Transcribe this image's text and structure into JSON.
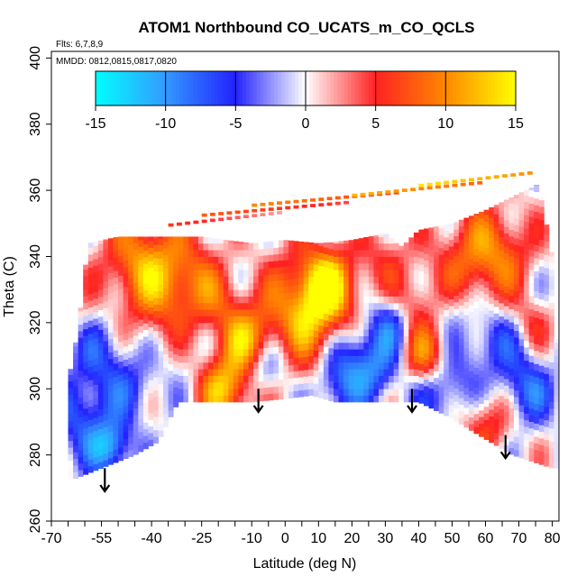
{
  "chart_data": {
    "type": "heatmap",
    "title": "ATOM1 Northbound CO_UCATS_m_CO_QCLS",
    "flights_label": "Flts: 6,7,8,9",
    "dates_label": "MMDD: 0812,0815,0817,0820",
    "xlabel": "Latitude (deg N)",
    "ylabel": "Theta (C)",
    "xlim": [
      -70,
      82
    ],
    "ylim": [
      260,
      402
    ],
    "x_ticks": [
      -70,
      -55,
      -40,
      -25,
      -10,
      0,
      10,
      20,
      30,
      40,
      50,
      60,
      70,
      80
    ],
    "x_tick_labels": [
      "-70",
      "-55",
      "-40",
      "-25",
      "-10",
      "0",
      "10",
      "20",
      "30",
      "40",
      "50",
      "60",
      "70",
      "80"
    ],
    "x_minor_ticks": [
      -65,
      -60,
      -50,
      -45,
      -35,
      -30,
      -20,
      -15,
      -5,
      5,
      15,
      25,
      35,
      45,
      55,
      65,
      75
    ],
    "y_ticks": [
      260,
      280,
      300,
      320,
      340,
      360,
      380,
      400
    ],
    "y_tick_labels": [
      "260",
      "280",
      "300",
      "320",
      "340",
      "360",
      "380",
      "400"
    ],
    "colorbar": {
      "min": -15,
      "max": 15,
      "ticks": [
        -15,
        -10,
        -5,
        0,
        5,
        10,
        15
      ],
      "tick_labels": [
        "-15",
        "-10",
        "-5",
        "0",
        "5",
        "10",
        "15"
      ],
      "colors": [
        "#00ffff",
        "#3399ff",
        "#2222ff",
        "#ffffff",
        "#ff2222",
        "#ff8800",
        "#ffff00"
      ]
    },
    "region_bottom_boundary": [
      [
        -65,
        272
      ],
      [
        -55,
        276
      ],
      [
        -45,
        280
      ],
      [
        -38,
        284
      ],
      [
        -32,
        296
      ],
      [
        -20,
        296
      ],
      [
        -10,
        296
      ],
      [
        0,
        297
      ],
      [
        8,
        298
      ],
      [
        15,
        296
      ],
      [
        25,
        296
      ],
      [
        32,
        296
      ],
      [
        40,
        296
      ],
      [
        50,
        291
      ],
      [
        58,
        286
      ],
      [
        68,
        280
      ],
      [
        74,
        278
      ],
      [
        80,
        276
      ]
    ],
    "region_top_boundary": [
      [
        -65,
        302
      ],
      [
        -62,
        318
      ],
      [
        -59,
        344
      ],
      [
        -50,
        346
      ],
      [
        -35,
        346
      ],
      [
        -25,
        346
      ],
      [
        -10,
        344
      ],
      [
        0,
        345
      ],
      [
        10,
        344
      ],
      [
        20,
        345
      ],
      [
        30,
        347
      ],
      [
        35,
        343
      ],
      [
        40,
        348
      ],
      [
        50,
        350
      ],
      [
        60,
        354
      ],
      [
        70,
        359
      ],
      [
        76,
        362
      ],
      [
        80,
        340
      ],
      [
        82,
        300
      ]
    ],
    "profile_arrows": [
      {
        "lat": -54,
        "theta_top": 276,
        "theta_bottom": 269
      },
      {
        "lat": -8,
        "theta_top": 300,
        "theta_bottom": 293
      },
      {
        "lat": 38,
        "theta_top": 300,
        "theta_bottom": 293
      },
      {
        "lat": 66,
        "theta_top": 286,
        "theta_bottom": 279
      }
    ],
    "field_features": [
      {
        "lat": -38,
        "theta": 330,
        "value": 7,
        "radius": 14
      },
      {
        "lat": -45,
        "theta": 340,
        "value": 6,
        "radius": 10
      },
      {
        "lat": -30,
        "theta": 335,
        "value": 5,
        "radius": 10
      },
      {
        "lat": -20,
        "theta": 326,
        "value": 4,
        "radius": 8
      },
      {
        "lat": -55,
        "theta": 310,
        "value": -6,
        "radius": 10
      },
      {
        "lat": -60,
        "theta": 290,
        "value": -7,
        "radius": 9
      },
      {
        "lat": -52,
        "theta": 282,
        "value": -10,
        "radius": 6
      },
      {
        "lat": -45,
        "theta": 300,
        "value": -4,
        "radius": 8
      },
      {
        "lat": -62,
        "theta": 322,
        "value": 2,
        "radius": 6
      },
      {
        "lat": -18,
        "theta": 300,
        "value": 12,
        "radius": 8
      },
      {
        "lat": -12,
        "theta": 315,
        "value": 9,
        "radius": 8
      },
      {
        "lat": -6,
        "theta": 305,
        "value": -6,
        "radius": 6
      },
      {
        "lat": 0,
        "theta": 312,
        "value": -3,
        "radius": 6
      },
      {
        "lat": 8,
        "theta": 322,
        "value": 13,
        "radius": 14
      },
      {
        "lat": 12,
        "theta": 332,
        "value": 9,
        "radius": 8
      },
      {
        "lat": 20,
        "theta": 310,
        "value": -10,
        "radius": 9
      },
      {
        "lat": 15,
        "theta": 300,
        "value": -6,
        "radius": 7
      },
      {
        "lat": 32,
        "theta": 320,
        "value": -8,
        "radius": 7
      },
      {
        "lat": 28,
        "theta": 305,
        "value": -5,
        "radius": 7
      },
      {
        "lat": 42,
        "theta": 310,
        "value": 10,
        "radius": 7
      },
      {
        "lat": 38,
        "theta": 325,
        "value": 6,
        "radius": 7
      },
      {
        "lat": 48,
        "theta": 300,
        "value": -7,
        "radius": 9
      },
      {
        "lat": 55,
        "theta": 338,
        "value": 7,
        "radius": 12
      },
      {
        "lat": 65,
        "theta": 342,
        "value": 6,
        "radius": 10
      },
      {
        "lat": 50,
        "theta": 325,
        "value": -3,
        "radius": 7
      },
      {
        "lat": 62,
        "theta": 315,
        "value": -6,
        "radius": 8
      },
      {
        "lat": 60,
        "theta": 290,
        "value": 7,
        "radius": 8
      },
      {
        "lat": 72,
        "theta": 300,
        "value": -8,
        "radius": 8
      },
      {
        "lat": 74,
        "theta": 320,
        "value": 4,
        "radius": 6
      },
      {
        "lat": 30,
        "theta": 340,
        "value": 4,
        "radius": 8
      },
      {
        "lat": -30,
        "theta": 310,
        "value": -2,
        "radius": 8
      }
    ],
    "upper_strips": [
      {
        "lat_start": -35,
        "lat_end": 0,
        "theta": 349,
        "value": 6
      },
      {
        "lat_start": -25,
        "lat_end": 20,
        "theta": 352,
        "value": 8
      },
      {
        "lat_start": -10,
        "lat_end": 35,
        "theta": 355,
        "value": 10
      },
      {
        "lat_start": 20,
        "lat_end": 60,
        "theta": 358,
        "value": 12
      },
      {
        "lat_start": 40,
        "lat_end": 75,
        "theta": 361,
        "value": 14
      }
    ]
  }
}
